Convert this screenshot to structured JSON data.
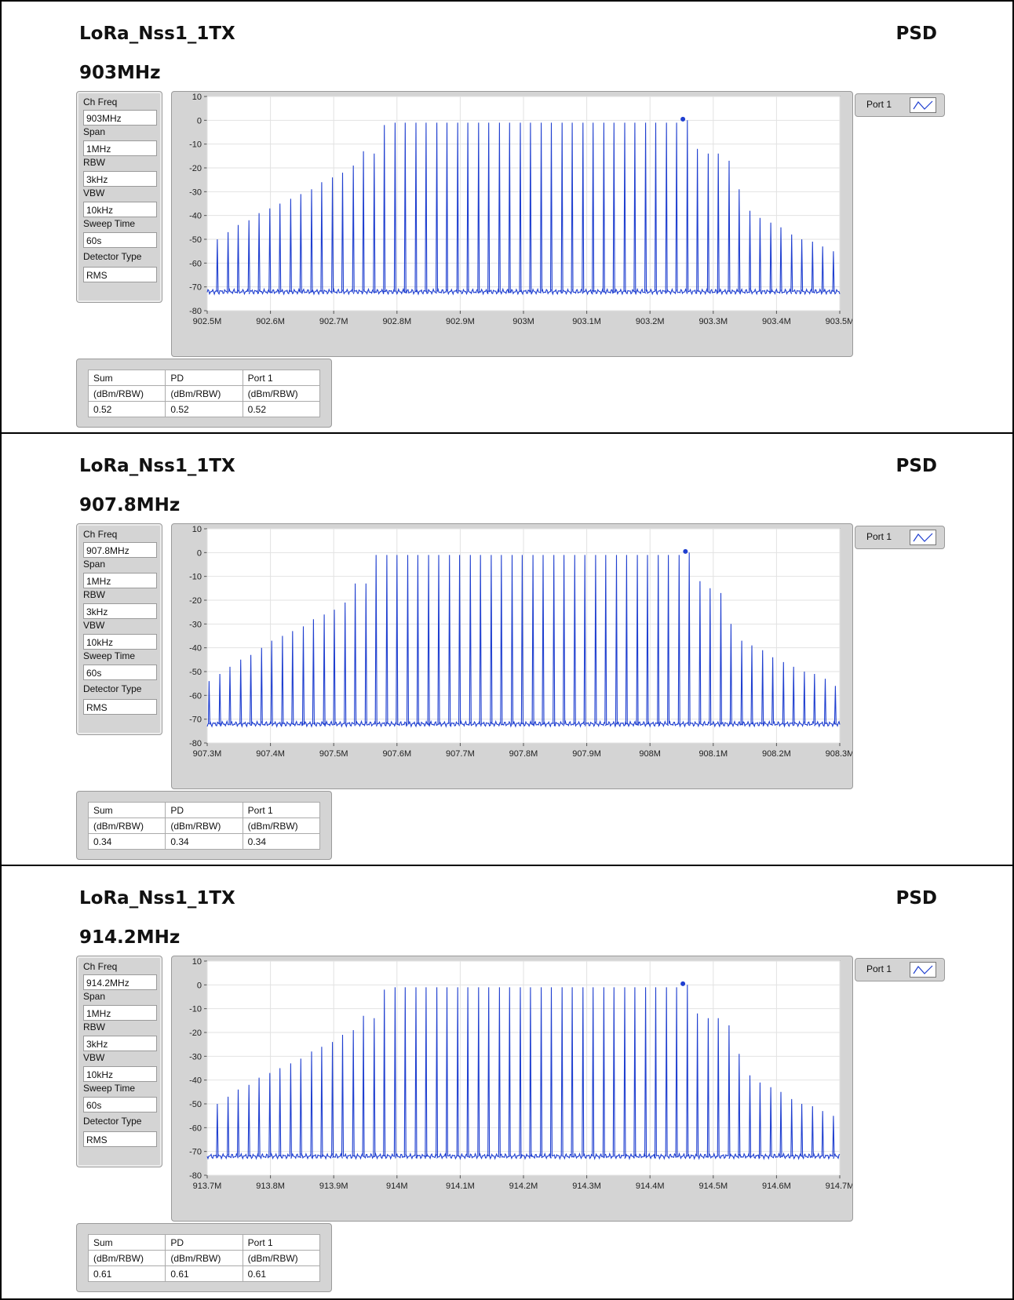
{
  "panels": [
    {
      "title": "LoRa_Nss1_1TX",
      "measure": "PSD",
      "frequency": "903MHz",
      "params": [
        {
          "label": "Ch Freq",
          "value": "903MHz"
        },
        {
          "label": "Span",
          "value": "1MHz"
        },
        {
          "label": "RBW",
          "value": "3kHz"
        },
        {
          "label": "VBW",
          "value": "10kHz"
        },
        {
          "label": "Sweep Time",
          "value": "60s"
        },
        {
          "label": "Detector Type",
          "value": "RMS"
        }
      ],
      "legend": "Port 1",
      "results": {
        "headers": [
          "Sum",
          "PD",
          "Port 1"
        ],
        "units": [
          "(dBm/RBW)",
          "(dBm/RBW)",
          "(dBm/RBW)"
        ],
        "values": [
          "0.52",
          "0.52",
          "0.52"
        ]
      }
    },
    {
      "title": "LoRa_Nss1_1TX",
      "measure": "PSD",
      "frequency": "907.8MHz",
      "params": [
        {
          "label": "Ch Freq",
          "value": "907.8MHz"
        },
        {
          "label": "Span",
          "value": "1MHz"
        },
        {
          "label": "RBW",
          "value": "3kHz"
        },
        {
          "label": "VBW",
          "value": "10kHz"
        },
        {
          "label": "Sweep Time",
          "value": "60s"
        },
        {
          "label": "Detector Type",
          "value": "RMS"
        }
      ],
      "legend": "Port 1",
      "results": {
        "headers": [
          "Sum",
          "PD",
          "Port 1"
        ],
        "units": [
          "(dBm/RBW)",
          "(dBm/RBW)",
          "(dBm/RBW)"
        ],
        "values": [
          "0.34",
          "0.34",
          "0.34"
        ]
      }
    },
    {
      "title": "LoRa_Nss1_1TX",
      "measure": "PSD",
      "frequency": "914.2MHz",
      "params": [
        {
          "label": "Ch Freq",
          "value": "914.2MHz"
        },
        {
          "label": "Span",
          "value": "1MHz"
        },
        {
          "label": "RBW",
          "value": "3kHz"
        },
        {
          "label": "VBW",
          "value": "10kHz"
        },
        {
          "label": "Sweep Time",
          "value": "60s"
        },
        {
          "label": "Detector Type",
          "value": "RMS"
        }
      ],
      "legend": "Port 1",
      "results": {
        "headers": [
          "Sum",
          "PD",
          "Port 1"
        ],
        "units": [
          "(dBm/RBW)",
          "(dBm/RBW)",
          "(dBm/RBW)"
        ],
        "values": [
          "0.61",
          "0.61",
          "0.61"
        ]
      }
    }
  ],
  "chart_data": [
    {
      "type": "line",
      "series": [
        {
          "name": "Port 1",
          "color": "#1f3fd0"
        }
      ],
      "x_ticks": [
        "902.5M",
        "902.6M",
        "902.7M",
        "902.8M",
        "902.9M",
        "903M",
        "903.1M",
        "903.2M",
        "903.3M",
        "903.4M",
        "903.5M"
      ],
      "y_ticks": [
        "10",
        "0",
        "-10",
        "-20",
        "-30",
        "-40",
        "-50",
        "-60",
        "-70",
        "-80"
      ],
      "xlim": [
        902.5,
        903.5
      ],
      "ylim": [
        -80,
        10
      ],
      "noise_floor": -72,
      "peaks_x": [
        902.516,
        902.533,
        902.549,
        902.566,
        902.582,
        902.599,
        902.615,
        902.632,
        902.648,
        902.665,
        902.681,
        902.698,
        902.714,
        902.731,
        902.747,
        902.764,
        902.78,
        902.797,
        902.813,
        902.83,
        902.846,
        902.863,
        902.879,
        902.896,
        902.912,
        902.929,
        902.945,
        902.962,
        902.978,
        902.995,
        903.011,
        903.028,
        903.044,
        903.061,
        903.077,
        903.094,
        903.11,
        903.127,
        903.143,
        903.16,
        903.176,
        903.193,
        903.209,
        903.226,
        903.242,
        903.259,
        903.275,
        903.292,
        903.308,
        903.325,
        903.341,
        903.358,
        903.374,
        903.391,
        903.407,
        903.424,
        903.44,
        903.457,
        903.473,
        903.49
      ],
      "peaks_y": [
        -50,
        -47,
        -44,
        -42,
        -39,
        -37,
        -35,
        -33,
        -31,
        -29,
        -26,
        -24,
        -22,
        -19,
        -13,
        -14,
        -2,
        -1,
        -1,
        -1,
        -1,
        -1,
        -1,
        -1,
        -1,
        -1,
        -1,
        -1,
        -1,
        -1,
        -1,
        -1,
        -1,
        -1,
        -1,
        -1,
        -1,
        -1,
        -1,
        -1,
        -1,
        -1,
        -1,
        -1,
        -1,
        0,
        -12,
        -14,
        -14,
        -17,
        -29,
        -38,
        -41,
        -43,
        -45,
        -48,
        -50,
        -51,
        -53,
        -55
      ],
      "marker": {
        "x": 903.252,
        "y": 0.5
      }
    },
    {
      "type": "line",
      "series": [
        {
          "name": "Port 1",
          "color": "#1f3fd0"
        }
      ],
      "x_ticks": [
        "907.3M",
        "907.4M",
        "907.5M",
        "907.6M",
        "907.7M",
        "907.8M",
        "907.9M",
        "908M",
        "908.1M",
        "908.2M",
        "908.3M"
      ],
      "y_ticks": [
        "10",
        "0",
        "-10",
        "-20",
        "-30",
        "-40",
        "-50",
        "-60",
        "-70",
        "-80"
      ],
      "xlim": [
        907.3,
        908.3
      ],
      "ylim": [
        -80,
        10
      ],
      "noise_floor": -72,
      "peaks_x": [
        907.303,
        907.32,
        907.336,
        907.353,
        907.369,
        907.386,
        907.402,
        907.419,
        907.435,
        907.452,
        907.468,
        907.485,
        907.501,
        907.518,
        907.534,
        907.551,
        907.567,
        907.584,
        907.6,
        907.617,
        907.633,
        907.65,
        907.666,
        907.683,
        907.699,
        907.716,
        907.732,
        907.749,
        907.765,
        907.782,
        907.798,
        907.815,
        907.831,
        907.848,
        907.864,
        907.881,
        907.897,
        907.914,
        907.93,
        907.947,
        907.963,
        907.98,
        907.996,
        908.013,
        908.029,
        908.046,
        908.062,
        908.079,
        908.095,
        908.112,
        908.128,
        908.145,
        908.161,
        908.178,
        908.194,
        908.211,
        908.227,
        908.244,
        908.26,
        908.277,
        908.293
      ],
      "peaks_y": [
        -54,
        -51,
        -48,
        -45,
        -43,
        -40,
        -37,
        -35,
        -33,
        -31,
        -28,
        -26,
        -24,
        -21,
        -13,
        -13,
        -1,
        -1,
        -1,
        -1,
        -1,
        -1,
        -1,
        -1,
        -1,
        -1,
        -1,
        -1,
        -1,
        -1,
        -1,
        -1,
        -1,
        -1,
        -1,
        -1,
        -1,
        -1,
        -1,
        -1,
        -1,
        -1,
        -1,
        -1,
        -1,
        -1,
        0,
        -12,
        -15,
        -17,
        -30,
        -37,
        -39,
        -41,
        -44,
        -46,
        -48,
        -50,
        -51,
        -53,
        -56
      ],
      "marker": {
        "x": 908.056,
        "y": 0.5
      }
    },
    {
      "type": "line",
      "series": [
        {
          "name": "Port 1",
          "color": "#1f3fd0"
        }
      ],
      "x_ticks": [
        "913.7M",
        "913.8M",
        "913.9M",
        "914M",
        "914.1M",
        "914.2M",
        "914.3M",
        "914.4M",
        "914.5M",
        "914.6M",
        "914.7M"
      ],
      "y_ticks": [
        "10",
        "0",
        "-10",
        "-20",
        "-30",
        "-40",
        "-50",
        "-60",
        "-70",
        "-80"
      ],
      "xlim": [
        913.7,
        914.7
      ],
      "ylim": [
        -80,
        10
      ],
      "noise_floor": -72,
      "peaks_x": [
        913.716,
        913.733,
        913.749,
        913.766,
        913.782,
        913.799,
        913.815,
        913.832,
        913.848,
        913.865,
        913.881,
        913.898,
        913.914,
        913.931,
        913.947,
        913.964,
        913.98,
        913.997,
        914.013,
        914.03,
        914.046,
        914.063,
        914.079,
        914.096,
        914.112,
        914.129,
        914.145,
        914.162,
        914.178,
        914.195,
        914.211,
        914.228,
        914.244,
        914.261,
        914.277,
        914.294,
        914.31,
        914.327,
        914.343,
        914.36,
        914.376,
        914.393,
        914.409,
        914.426,
        914.442,
        914.459,
        914.475,
        914.492,
        914.508,
        914.525,
        914.541,
        914.558,
        914.574,
        914.591,
        914.607,
        914.624,
        914.64,
        914.657,
        914.673,
        914.69
      ],
      "peaks_y": [
        -50,
        -47,
        -44,
        -42,
        -39,
        -37,
        -35,
        -33,
        -31,
        -28,
        -26,
        -24,
        -21,
        -19,
        -13,
        -14,
        -2,
        -1,
        -1,
        -1,
        -1,
        -1,
        -1,
        -1,
        -1,
        -1,
        -1,
        -1,
        -1,
        -1,
        -1,
        -1,
        -1,
        -1,
        -1,
        -1,
        -1,
        -1,
        -1,
        -1,
        -1,
        -1,
        -1,
        -1,
        -1,
        0,
        -12,
        -14,
        -14,
        -17,
        -29,
        -38,
        -41,
        -43,
        -45,
        -48,
        -50,
        -51,
        -53,
        -55
      ],
      "marker": {
        "x": 914.452,
        "y": 0.5
      }
    }
  ]
}
